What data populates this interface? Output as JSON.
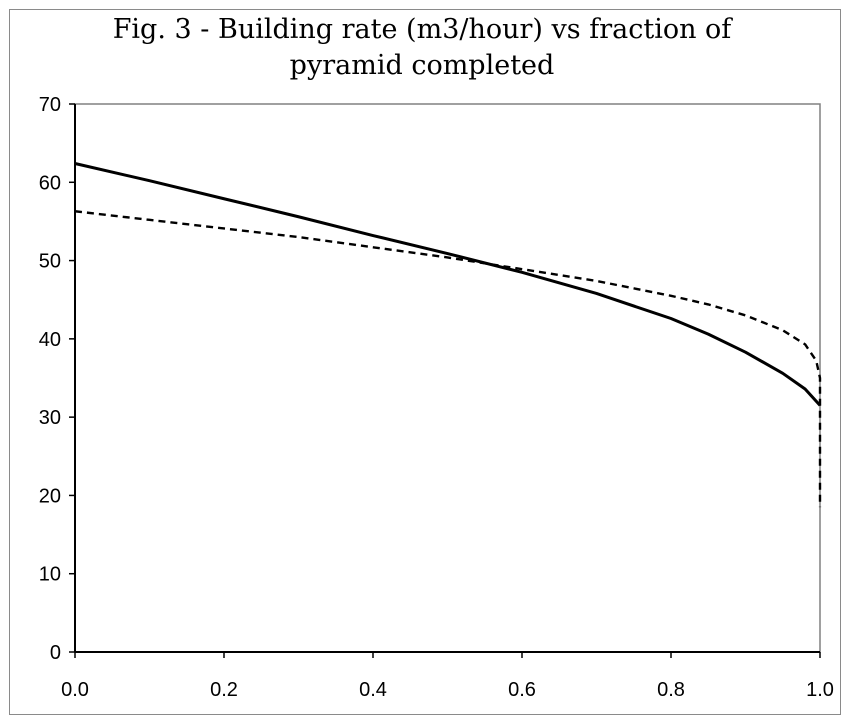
{
  "chart_data": {
    "type": "line",
    "title_lines": [
      "Fig. 3 - Building rate (m3/hour) vs fraction of",
      "pyramid completed"
    ],
    "xlabel": "",
    "ylabel": "",
    "xlim": [
      0,
      1
    ],
    "ylim": [
      0,
      70
    ],
    "x_ticks": [
      "0.0",
      "0.2",
      "0.4",
      "0.6",
      "0.8",
      "1.0"
    ],
    "y_ticks": [
      "0",
      "10",
      "20",
      "30",
      "40",
      "50",
      "60",
      "70"
    ],
    "grid": false,
    "legend": "none",
    "series": [
      {
        "style": "solid",
        "color": "#000000",
        "x": [
          0.0,
          0.1,
          0.2,
          0.3,
          0.4,
          0.5,
          0.6,
          0.7,
          0.8,
          0.85,
          0.9,
          0.95,
          0.98,
          1.0
        ],
        "y": [
          62.4,
          60.2,
          57.9,
          55.6,
          53.2,
          50.9,
          48.5,
          45.8,
          42.6,
          40.6,
          38.3,
          35.6,
          33.6,
          31.5
        ]
      },
      {
        "style": "dashed",
        "color": "#000000",
        "x": [
          0.0,
          0.1,
          0.2,
          0.3,
          0.4,
          0.5,
          0.6,
          0.7,
          0.8,
          0.85,
          0.9,
          0.95,
          0.98,
          0.995,
          1.0,
          1.0
        ],
        "y": [
          56.3,
          55.2,
          54.1,
          53.0,
          51.7,
          50.4,
          48.9,
          47.4,
          45.5,
          44.4,
          43.0,
          41.1,
          39.3,
          37.2,
          35.0,
          18.5
        ]
      }
    ]
  }
}
